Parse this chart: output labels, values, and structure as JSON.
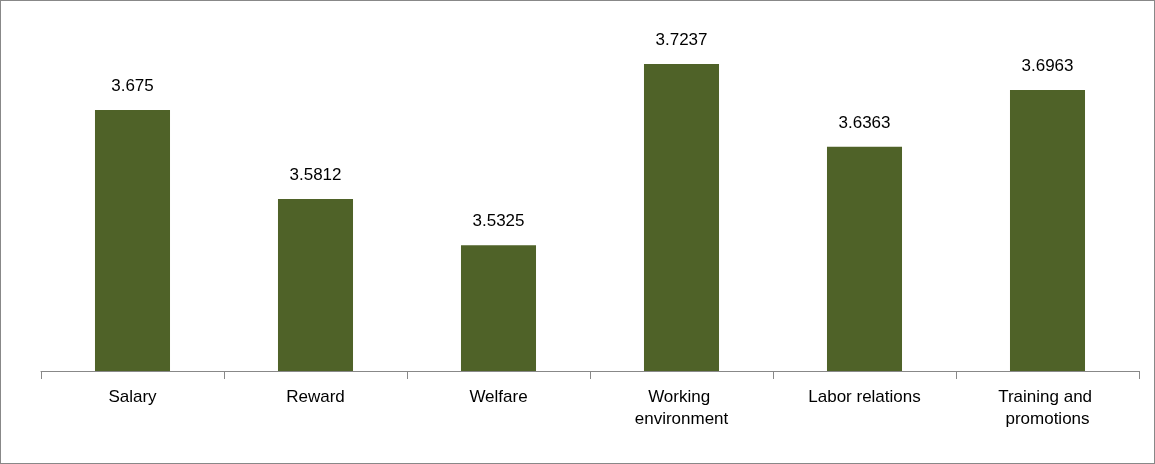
{
  "chart_data": {
    "type": "bar",
    "categories": [
      "Salary",
      "Reward",
      "Welfare",
      "Working environment",
      "Labor relations",
      "Training and promotions"
    ],
    "values": [
      3.675,
      3.5812,
      3.5325,
      3.7237,
      3.6363,
      3.6963
    ],
    "color": "#4f6228",
    "ylim": [
      3.4,
      3.79
    ],
    "data_labels": true,
    "grid": false,
    "tick_labels": "x"
  }
}
